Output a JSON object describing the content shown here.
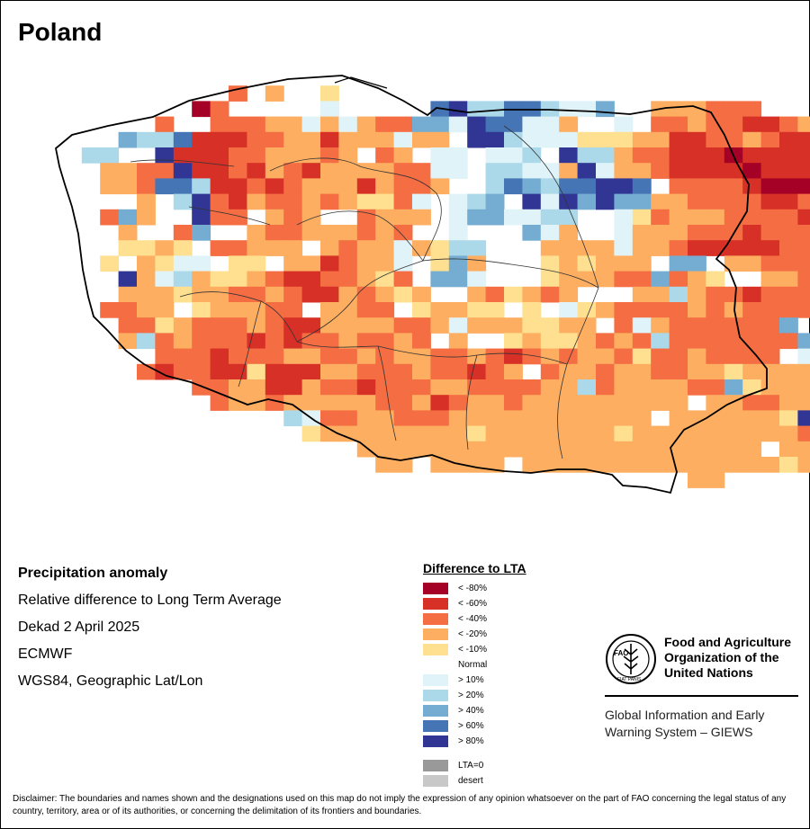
{
  "title": "Poland",
  "info": {
    "heading": "Precipitation anomaly",
    "lines": [
      "Relative difference to Long Term Average",
      "Dekad 2 April 2025",
      "ECMWF",
      "WGS84, Geographic Lat/Lon"
    ]
  },
  "legend": {
    "title": "Difference to LTA",
    "items": [
      {
        "label": "< -80%",
        "color": "#a50026"
      },
      {
        "label": "< -60%",
        "color": "#d73027"
      },
      {
        "label": "< -40%",
        "color": "#f46d43"
      },
      {
        "label": "< -20%",
        "color": "#fdae61"
      },
      {
        "label": "< -10%",
        "color": "#fee090"
      },
      {
        "label": "Normal",
        "color": "#ffffff"
      },
      {
        "label": "> 10%",
        "color": "#e0f3f8"
      },
      {
        "label": "> 20%",
        "color": "#abd9e9"
      },
      {
        "label": "> 40%",
        "color": "#74add1"
      },
      {
        "label": "> 60%",
        "color": "#4575b4"
      },
      {
        "label": "> 80%",
        "color": "#313695"
      }
    ],
    "extra": [
      {
        "label": "LTA=0",
        "color": "#999999"
      },
      {
        "label": "desert",
        "color": "#c8c8c8"
      }
    ]
  },
  "organization": {
    "name_lines": [
      "Food and Agriculture",
      "Organization of the",
      "United Nations"
    ],
    "emblem_letters": "FAO",
    "emblem_motto": "FIAT PANIS",
    "system_lines": [
      "Global Information and Early",
      "Warning System – GIEWS"
    ]
  },
  "disclaimer": "Disclaimer: The boundaries and names shown and the designations used on this map do not imply the expression of any opinion whatsoever on the part of FAO concerning the legal status of any country, territory, area or of its authorities, or concerning the delimitation of its frontiers and boundaries.",
  "map": {
    "grid_origin": {
      "lon": 14.1,
      "lat": 54.9
    },
    "cell_size_deg": 0.2,
    "categories": "0=< -80%, 1=< -60%, 2=< -40%, 3=< -20%, 4=< -10%, 5=Normal, 6=> 10%, 7=> 20%, 8=> 40%, 9=> 60%, A=> 80%",
    "grid_rows": [
      "......................................................",
      "..........2.3..4..5....................................",
      "........02555.56.....9A77997668..333222.................",
      "......2.522233636322886A99663556.2232211233..............",
      "...58779111223313336335AA76664443311223211113............",
      "..7755A111223332352356656675A77322111011111222...........",
      "...3322A112132133332266577663A6332111101111122...........",
      "..5332997112123331322355798799AA952222100001221..........",
      "...55357A21322323442656785A6A8A883322221122222...........",
      "...28355A22532355233356886677556423332222123333..........",
      "...535528553223332325565558635563332221222222222.........",
      "....4434522333532336347755533336332111112222222..........",
      "...45346654453312336548355543433358853322223332..........",
      "....A3673443211223425886555433322823455332223322.........",
      "....333433223211323435532432355533732212224322...........",
      "...22335433322533225433445456432222323222223222..........",
      "....2243222321133332236333443352632222228552233..........",
      "....37232221212232232535543443232722222228722222.........",
      "......22212223322323322321232332422322225643312..........",
      ".....2122114111332223221235233233223343333222777.........",
      "........2233113221222332222337233332284333322233.........",
      ".........2332333332231233233333333353322333338954........",
      ".............7622332223333333333353333334A2437343........",
      "..............4333333334333333343333333332224.............",
      ".................3333333333333333333333533334............",
      "..................3353333533333333333333433..............",
      "...................................33......................"
    ]
  }
}
